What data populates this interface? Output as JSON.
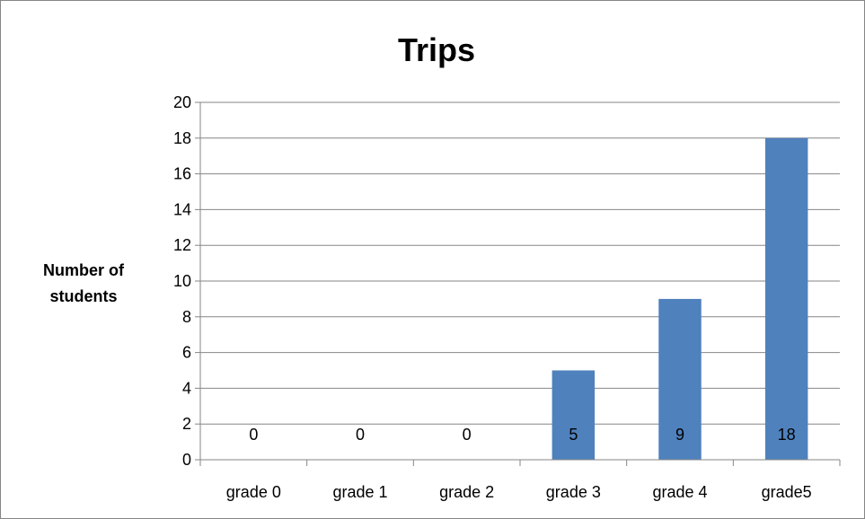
{
  "chart_data": {
    "type": "bar",
    "title": "Trips",
    "xlabel": "",
    "ylabel_lines": [
      "Number of",
      "students"
    ],
    "categories": [
      "grade 0",
      "grade 1",
      "grade 2",
      "grade 3",
      "grade 4",
      "grade5"
    ],
    "values": [
      0,
      0,
      0,
      5,
      9,
      18
    ],
    "data_labels": [
      "0",
      "0",
      "0",
      "5",
      "9",
      "18"
    ],
    "ylim": [
      0,
      20
    ],
    "yticks": [
      "0",
      "2",
      "4",
      "6",
      "8",
      "10",
      "12",
      "14",
      "16",
      "18",
      "20"
    ],
    "ytick_values": [
      0,
      2,
      4,
      6,
      8,
      10,
      12,
      14,
      16,
      18,
      20
    ],
    "grid": true,
    "legend": "none",
    "bar_color": "#4F81BD",
    "grid_color": "#868686"
  }
}
